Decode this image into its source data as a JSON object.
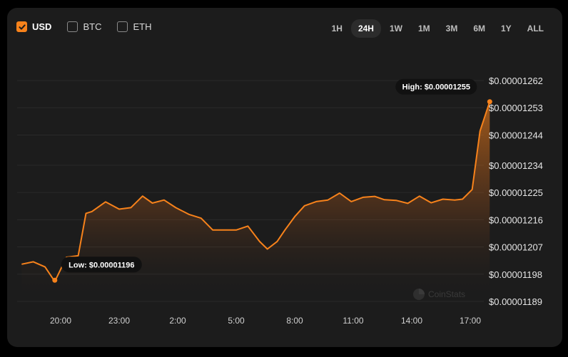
{
  "currencies": [
    {
      "label": "USD",
      "checked": true
    },
    {
      "label": "BTC",
      "checked": false
    },
    {
      "label": "ETH",
      "checked": false
    }
  ],
  "ranges": [
    {
      "label": "1H",
      "active": false
    },
    {
      "label": "24H",
      "active": true
    },
    {
      "label": "1W",
      "active": false
    },
    {
      "label": "1M",
      "active": false
    },
    {
      "label": "3M",
      "active": false
    },
    {
      "label": "6M",
      "active": false
    },
    {
      "label": "1Y",
      "active": false
    },
    {
      "label": "ALL",
      "active": false
    }
  ],
  "colors": {
    "accent": "#f7821b",
    "background": "#1c1c1c"
  },
  "watermark": "CoinStats",
  "chart_data": {
    "type": "area",
    "ylim": [
      1.189e-05,
      1.262e-05
    ],
    "yticks": [
      "$0.00001262",
      "$0.00001253",
      "$0.00001244",
      "$0.00001234",
      "$0.00001225",
      "$0.00001216",
      "$0.00001207",
      "$0.00001198",
      "$0.00001189"
    ],
    "xticks": [
      "20:00",
      "23:00",
      "2:00",
      "5:00",
      "8:00",
      "11:00",
      "14:00",
      "17:00"
    ],
    "x_hours": [
      18.0,
      18.6,
      19.2,
      19.7,
      20.3,
      20.9,
      21.3,
      21.6,
      22.3,
      23.0,
      23.6,
      24.2,
      24.7,
      25.3,
      25.9,
      26.6,
      27.2,
      27.8,
      28.4,
      29.0,
      29.6,
      30.2,
      30.6,
      31.1,
      31.5,
      32.0,
      32.5,
      33.1,
      33.7,
      34.3,
      34.9,
      35.5,
      36.1,
      36.6,
      37.2,
      37.8,
      38.4,
      39.0,
      39.6,
      40.2,
      40.6,
      41.1,
      41.5,
      42.0
    ],
    "values": [
      1.2013e-05,
      1.2021e-05,
      1.2004e-05,
      1.1956e-05,
      1.2036e-05,
      1.2041e-05,
      1.2181e-05,
      1.2187e-05,
      1.2219e-05,
      1.2195e-05,
      1.22e-05,
      1.2238e-05,
      1.2215e-05,
      1.2225e-05,
      1.22e-05,
      1.2177e-05,
      1.2165e-05,
      1.2126e-05,
      1.2126e-05,
      1.2126e-05,
      1.2139e-05,
      1.2088e-05,
      1.2063e-05,
      1.2088e-05,
      1.2126e-05,
      1.217e-05,
      1.2206e-05,
      1.222e-05,
      1.2225e-05,
      1.2248e-05,
      1.222e-05,
      1.2234e-05,
      1.2237e-05,
      1.2226e-05,
      1.2224e-05,
      1.2214e-05,
      1.2238e-05,
      1.2216e-05,
      1.2228e-05,
      1.2225e-05,
      1.2228e-05,
      1.226e-05,
      1.2453e-05,
      1.255e-05
    ],
    "low": {
      "label": "Low: $0.00001196",
      "value": 1.196e-05,
      "x_hour": 19.7
    },
    "high": {
      "label": "High: $0.00001255",
      "value": 1.255e-05,
      "x_hour": 42.0
    }
  }
}
